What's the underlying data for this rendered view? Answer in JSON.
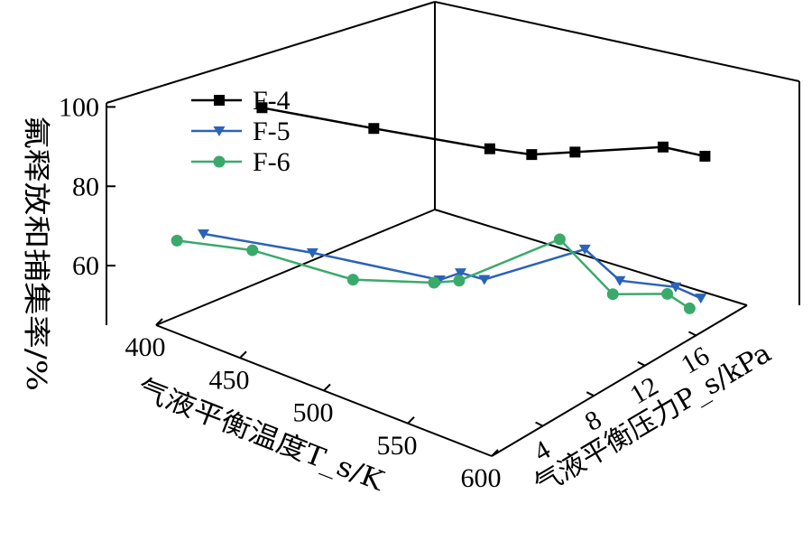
{
  "chart_data": {
    "type": "line",
    "projection": "3d",
    "title": "",
    "ylabel": "氟释放和捕集率/%",
    "xlabel_T": "气液平衡温度T_s/K",
    "xlabel_P": "气液平衡压力P_s/kPa",
    "z_ticks": [
      "60",
      "80",
      "100"
    ],
    "t_ticks": [
      "400",
      "450",
      "500",
      "550",
      "600"
    ],
    "p_ticks": [
      "4",
      "8",
      "12",
      "16"
    ],
    "legend": {
      "placement": "top-left",
      "entries": [
        "F-4",
        "F-5",
        "F-6"
      ]
    },
    "series": [
      {
        "name": "F-4",
        "color": "#000000",
        "marker": "square",
        "points": [
          {
            "T": 400,
            "P": 7.6,
            "value": 85.7
          },
          {
            "T": 450,
            "P": 9.6,
            "value": 85.8
          },
          {
            "T": 500,
            "P": 11.9,
            "value": 85.6
          },
          {
            "T": 520,
            "P": 12.5,
            "value": 86.5
          },
          {
            "T": 540,
            "P": 13.2,
            "value": 89.2
          },
          {
            "T": 580,
            "P": 14.7,
            "value": 94.5
          },
          {
            "T": 600,
            "P": 15.3,
            "value": 94.6
          }
        ]
      },
      {
        "name": "F-5",
        "color": "#2a63b8",
        "marker": "triangle-down",
        "points": [
          {
            "T": 400,
            "P": 3.4,
            "value": 61.8
          },
          {
            "T": 450,
            "P": 5.2,
            "value": 62.6
          },
          {
            "T": 500,
            "P": 8.3,
            "value": 59.7
          },
          {
            "T": 510,
            "P": 8.6,
            "value": 62.5
          },
          {
            "T": 520,
            "P": 9.1,
            "value": 61.8
          },
          {
            "T": 560,
            "P": 11.5,
            "value": 71.8
          },
          {
            "T": 570,
            "P": 12.8,
            "value": 64.2
          },
          {
            "T": 590,
            "P": 14.4,
            "value": 63.6
          },
          {
            "T": 600,
            "P": 15.0,
            "value": 61.7
          }
        ]
      },
      {
        "name": "F-6",
        "color": "#3aaa6a",
        "marker": "circle",
        "points": [
          {
            "T": 400,
            "P": 1.5,
            "value": 62.8
          },
          {
            "T": 430,
            "P": 3.3,
            "value": 62.7
          },
          {
            "T": 470,
            "P": 5.7,
            "value": 58.7
          },
          {
            "T": 500,
            "P": 7.9,
            "value": 59.6
          },
          {
            "T": 510,
            "P": 8.5,
            "value": 60.8
          },
          {
            "T": 550,
            "P": 10.9,
            "value": 73.4
          },
          {
            "T": 570,
            "P": 12.3,
            "value": 61.7
          },
          {
            "T": 590,
            "P": 13.8,
            "value": 62.8
          },
          {
            "T": 600,
            "P": 14.2,
            "value": 60.4
          }
        ]
      }
    ]
  }
}
